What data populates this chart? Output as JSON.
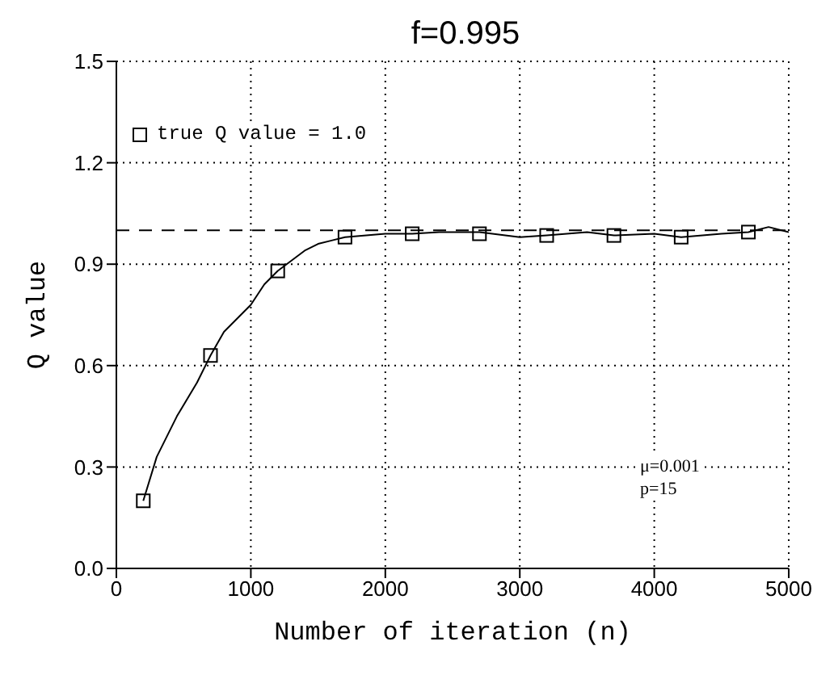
{
  "chart_data": {
    "type": "line",
    "title": "f=0.995",
    "xlabel": "Number of iteration (n)",
    "ylabel": "Q value",
    "xlim": [
      0,
      5000
    ],
    "xticks": [
      0,
      1000,
      2000,
      3000,
      4000,
      5000
    ],
    "ylim": [
      0,
      1.5
    ],
    "yticks": [
      {
        "value": 0,
        "label": "0.0"
      },
      {
        "value": 0.3,
        "label": "0.3"
      },
      {
        "value": 0.6,
        "label": "0.6"
      },
      {
        "value": 0.9,
        "label": "0.9"
      },
      {
        "value": 1.2,
        "label": "1.2"
      },
      {
        "value": 1.5,
        "label": "1.5"
      }
    ],
    "grid": true,
    "legend": "top left",
    "series": [
      {
        "color": "#000000",
        "marker": "none",
        "x": [
          200,
          300,
          450,
          600,
          700,
          800,
          900,
          1000,
          1100,
          1200,
          1300,
          1400,
          1500,
          1600,
          1700,
          2000,
          2200,
          2400,
          2700,
          3000,
          3200,
          3500,
          3700,
          4000,
          4200,
          4500,
          4700,
          4850,
          5000
        ],
        "values": [
          0.2,
          0.33,
          0.45,
          0.55,
          0.63,
          0.7,
          0.74,
          0.78,
          0.84,
          0.88,
          0.91,
          0.94,
          0.96,
          0.97,
          0.98,
          0.99,
          0.99,
          0.995,
          0.995,
          0.98,
          0.985,
          0.995,
          0.985,
          0.99,
          0.98,
          0.99,
          0.995,
          1.01,
          0.995
        ]
      },
      {
        "type": "scatter",
        "name": "true Q value = 1.0",
        "color": "#000000",
        "marker": "square",
        "x": [
          200,
          700,
          1200,
          1700,
          2200,
          2700,
          3200,
          3700,
          4200,
          4700
        ],
        "values": [
          0.2,
          0.63,
          0.88,
          0.98,
          0.99,
          0.99,
          0.985,
          0.985,
          0.98,
          0.995
        ]
      }
    ],
    "ref_lines": [
      {
        "axis": "y",
        "value": 1.0,
        "line_style": "dashed",
        "color": "#000000"
      }
    ],
    "annotations": [
      "μ=0.001",
      "p=15"
    ]
  }
}
